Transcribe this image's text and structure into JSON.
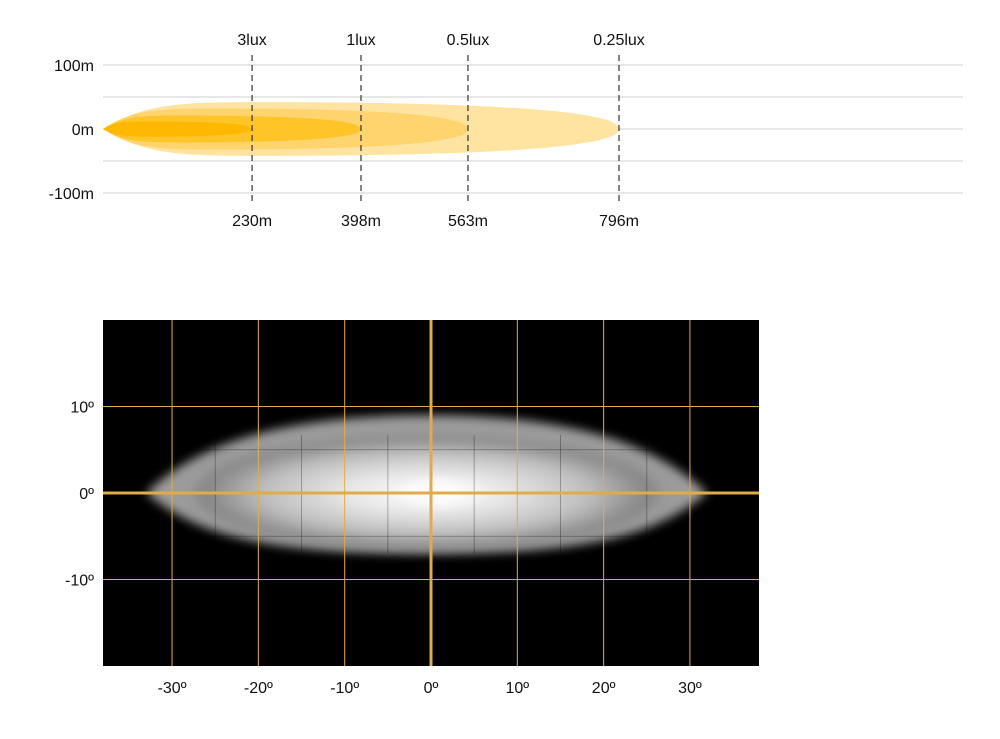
{
  "chart_data": [
    {
      "type": "area",
      "title": "",
      "xlabel": "",
      "ylabel": "",
      "ylim": [
        -100,
        100
      ],
      "y_ticks": [
        {
          "value": 100,
          "label": "100m"
        },
        {
          "value": 0,
          "label": "0m"
        },
        {
          "value": -100,
          "label": "-100m"
        }
      ],
      "grid": true,
      "series": [
        {
          "name": "3lux",
          "distance": 230,
          "distance_label": "230m",
          "color": "#FFB800"
        },
        {
          "name": "1lux",
          "distance": 398,
          "distance_label": "398m",
          "color": "#FFC528"
        },
        {
          "name": "0.5lux",
          "distance": 563,
          "distance_label": "563m",
          "color": "#FFD36E"
        },
        {
          "name": "0.25lux",
          "distance": 796,
          "distance_label": "796m",
          "color": "#FFE3A0"
        }
      ]
    },
    {
      "type": "heatmap",
      "title": "",
      "xlim": [
        -38,
        38
      ],
      "ylim": [
        -20,
        20
      ],
      "x_ticks": [
        {
          "value": -30,
          "label": "-30º"
        },
        {
          "value": -20,
          "label": "-20º"
        },
        {
          "value": -10,
          "label": "-10º"
        },
        {
          "value": 0,
          "label": "0º"
        },
        {
          "value": 10,
          "label": "10º"
        },
        {
          "value": 20,
          "label": "20º"
        },
        {
          "value": 30,
          "label": "30º"
        }
      ],
      "y_ticks": [
        {
          "value": 10,
          "label": "10º"
        },
        {
          "value": 0,
          "label": "0º"
        },
        {
          "value": -10,
          "label": "-10º"
        }
      ],
      "beam": {
        "horizontal_extent_deg": [
          -33,
          32
        ],
        "vertical_extent_deg": [
          -7,
          9
        ],
        "hotspot_deg": [
          1,
          0
        ]
      },
      "grid": true,
      "grid_color": "#E0AC4A",
      "background_color": "#000000"
    }
  ]
}
